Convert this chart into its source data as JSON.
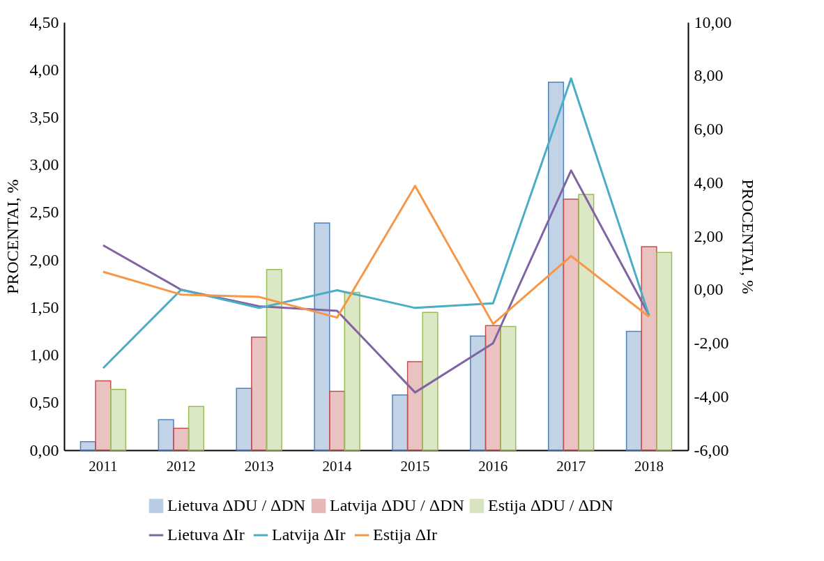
{
  "chart_data": {
    "type": "bar",
    "ylabel": "PROCENTAI, %",
    "y2label": "PROCENTAI, %",
    "categories": [
      "2011",
      "2012",
      "2013",
      "2014",
      "2015",
      "2016",
      "2017",
      "2018"
    ],
    "series": [
      {
        "name": "Lietuva ΔDU / ΔDN",
        "color": "#4f81bd",
        "values": [
          0.09,
          0.32,
          0.65,
          2.39,
          0.58,
          1.2,
          3.87,
          1.25
        ]
      },
      {
        "name": "Latvija ΔDU / ΔDN",
        "color": "#c0504d",
        "values": [
          0.73,
          0.23,
          1.19,
          0.62,
          0.93,
          1.31,
          2.64,
          2.14
        ]
      },
      {
        "name": "Estija ΔDU / ΔDN",
        "color": "#9bbb59",
        "values": [
          0.64,
          0.46,
          1.9,
          1.66,
          1.45,
          1.3,
          2.69,
          2.08
        ]
      },
      {
        "name": "Lietuva ΔIr",
        "type": "line",
        "axis": "y2",
        "color": "#8064a2",
        "values": [
          1.66,
          0.0,
          -0.62,
          -0.79,
          -3.84,
          -2.0,
          4.46,
          -0.95
        ]
      },
      {
        "name": "Latvija ΔIr",
        "type": "line",
        "axis": "y2",
        "color": "#4bacc6",
        "values": [
          -2.93,
          0.0,
          -0.68,
          -0.02,
          -0.68,
          -0.51,
          7.9,
          -0.97
        ]
      },
      {
        "name": "Estija ΔIr",
        "type": "line",
        "axis": "y2",
        "color": "#f79646",
        "values": [
          0.67,
          -0.18,
          -0.27,
          -1.04,
          3.88,
          -1.28,
          1.26,
          -1.01
        ]
      }
    ],
    "ylim": [
      0,
      4.5
    ],
    "yticks": [
      {
        "value": 0,
        "label": "0,00"
      },
      {
        "value": 0.5,
        "label": "0,50"
      },
      {
        "value": 1,
        "label": "1,00"
      },
      {
        "value": 1.5,
        "label": "1,50"
      },
      {
        "value": 2,
        "label": "2,00"
      },
      {
        "value": 2.5,
        "label": "2,50"
      },
      {
        "value": 3,
        "label": "3,00"
      },
      {
        "value": 3.5,
        "label": "3,50"
      },
      {
        "value": 4,
        "label": "4,00"
      },
      {
        "value": 4.5,
        "label": "4,50"
      }
    ],
    "y2lim": [
      -6,
      10
    ],
    "y2ticks": [
      {
        "value": -6,
        "label": "-6,00"
      },
      {
        "value": -4,
        "label": "-4,00"
      },
      {
        "value": -2,
        "label": "-2,00"
      },
      {
        "value": 0,
        "label": "0,00"
      },
      {
        "value": 2,
        "label": "2,00"
      },
      {
        "value": 4,
        "label": "4,00"
      },
      {
        "value": 6,
        "label": "6,00"
      },
      {
        "value": 8,
        "label": "8,00"
      },
      {
        "value": 10,
        "label": "10,00"
      }
    ],
    "legend": "bottom",
    "grid": false
  }
}
